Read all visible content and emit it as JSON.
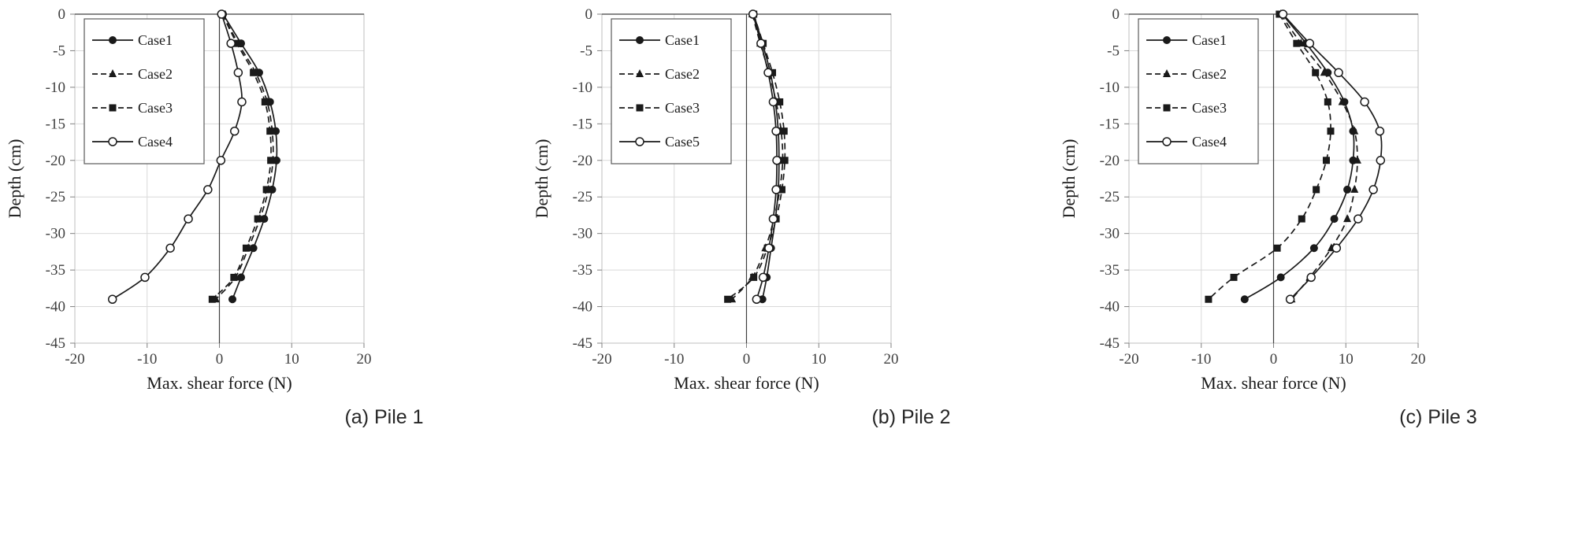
{
  "colors": {
    "line": "#1a1a1a",
    "grid": "#d9d9d9",
    "border": "#bfbfbf",
    "axis": "#404040",
    "tick_mark": "#808080",
    "legend_border": "#595959",
    "background": "#ffffff"
  },
  "chart_data": [
    {
      "type": "line",
      "caption": "(a) Pile 1",
      "xlabel": "Max. shear force (N)",
      "ylabel": "Depth (cm)",
      "xlim": [
        -20,
        20
      ],
      "ylim": [
        -45,
        0
      ],
      "xticks": [
        -20,
        -10,
        0,
        10,
        20
      ],
      "yticks": [
        0,
        -5,
        -10,
        -15,
        -20,
        -25,
        -30,
        -35,
        -40,
        -45
      ],
      "grid": true,
      "legend_position": "top-left",
      "depths": [
        0,
        -4,
        -8,
        -12,
        -16,
        -20,
        -24,
        -28,
        -32,
        -36,
        -39
      ],
      "series": [
        {
          "name": "Case1",
          "marker": "circle-filled",
          "line": "solid",
          "values": [
            0.5,
            3.0,
            5.5,
            7.0,
            7.8,
            7.9,
            7.3,
            6.2,
            4.7,
            3.0,
            1.8
          ]
        },
        {
          "name": "Case2",
          "marker": "triangle-filled",
          "line": "dashed",
          "values": [
            0.4,
            2.6,
            5.0,
            6.6,
            7.3,
            7.4,
            6.8,
            5.6,
            4.0,
            2.2,
            -0.5
          ]
        },
        {
          "name": "Case3",
          "marker": "square-filled",
          "line": "dashed",
          "values": [
            0.4,
            2.4,
            4.7,
            6.3,
            7.0,
            7.1,
            6.5,
            5.3,
            3.7,
            2.0,
            -1.0
          ]
        },
        {
          "name": "Case4",
          "marker": "circle-open",
          "line": "solid",
          "values": [
            0.3,
            1.6,
            2.6,
            3.1,
            2.1,
            0.2,
            -1.6,
            -4.3,
            -6.8,
            -10.3,
            -14.8
          ]
        }
      ]
    },
    {
      "type": "line",
      "caption": "(b) Pile 2",
      "xlabel": "Max. shear force (N)",
      "ylabel": "Depth (cm)",
      "xlim": [
        -20,
        20
      ],
      "ylim": [
        -45,
        0
      ],
      "xticks": [
        -20,
        -10,
        0,
        10,
        20
      ],
      "yticks": [
        0,
        -5,
        -10,
        -15,
        -20,
        -25,
        -30,
        -35,
        -40,
        -45
      ],
      "grid": true,
      "legend_position": "top-left",
      "depths": [
        0,
        -4,
        -8,
        -12,
        -16,
        -20,
        -24,
        -28,
        -32,
        -36,
        -39
      ],
      "series": [
        {
          "name": "Case1",
          "marker": "circle-filled",
          "line": "solid",
          "values": [
            1.0,
            2.2,
            3.3,
            4.0,
            4.4,
            4.5,
            4.4,
            4.0,
            3.4,
            2.8,
            2.2
          ]
        },
        {
          "name": "Case2",
          "marker": "triangle-filled",
          "line": "dashed",
          "values": [
            0.8,
            1.9,
            3.1,
            4.1,
            4.8,
            5.0,
            4.6,
            3.8,
            2.6,
            0.8,
            -2.0
          ]
        },
        {
          "name": "Case3",
          "marker": "square-filled",
          "line": "dashed",
          "values": [
            1.0,
            2.3,
            3.6,
            4.6,
            5.2,
            5.3,
            4.9,
            4.1,
            2.9,
            1.0,
            -2.6
          ]
        },
        {
          "name": "Case5",
          "marker": "circle-open",
          "line": "solid",
          "values": [
            0.9,
            2.0,
            3.0,
            3.7,
            4.1,
            4.2,
            4.1,
            3.7,
            3.1,
            2.3,
            1.4
          ]
        }
      ]
    },
    {
      "type": "line",
      "caption": "(c) Pile 3",
      "xlabel": "Max. shear force (N)",
      "ylabel": "Depth (cm)",
      "xlim": [
        -20,
        20
      ],
      "ylim": [
        -45,
        0
      ],
      "xticks": [
        -20,
        -10,
        0,
        10,
        20
      ],
      "yticks": [
        0,
        -5,
        -10,
        -15,
        -20,
        -25,
        -30,
        -35,
        -40,
        -45
      ],
      "grid": true,
      "legend_position": "top-left",
      "depths": [
        0,
        -4,
        -8,
        -12,
        -16,
        -20,
        -24,
        -28,
        -32,
        -36,
        -39
      ],
      "series": [
        {
          "name": "Case1",
          "marker": "circle-filled",
          "line": "solid",
          "values": [
            1.2,
            4.5,
            7.5,
            9.8,
            11.0,
            11.0,
            10.2,
            8.4,
            5.6,
            1.0,
            -4.0
          ]
        },
        {
          "name": "Case2",
          "marker": "triangle-filled",
          "line": "dashed",
          "values": [
            1.0,
            3.8,
            7.0,
            9.5,
            11.2,
            11.6,
            11.2,
            10.2,
            8.0,
            5.0,
            2.5
          ]
        },
        {
          "name": "Case3",
          "marker": "square-filled",
          "line": "dashed",
          "values": [
            0.8,
            3.2,
            5.8,
            7.5,
            7.9,
            7.3,
            5.9,
            3.9,
            0.5,
            -5.5,
            -9.0
          ]
        },
        {
          "name": "Case4",
          "marker": "circle-open",
          "line": "solid",
          "values": [
            1.3,
            5.0,
            9.0,
            12.6,
            14.7,
            14.8,
            13.8,
            11.7,
            8.7,
            5.2,
            2.3
          ]
        }
      ]
    }
  ]
}
